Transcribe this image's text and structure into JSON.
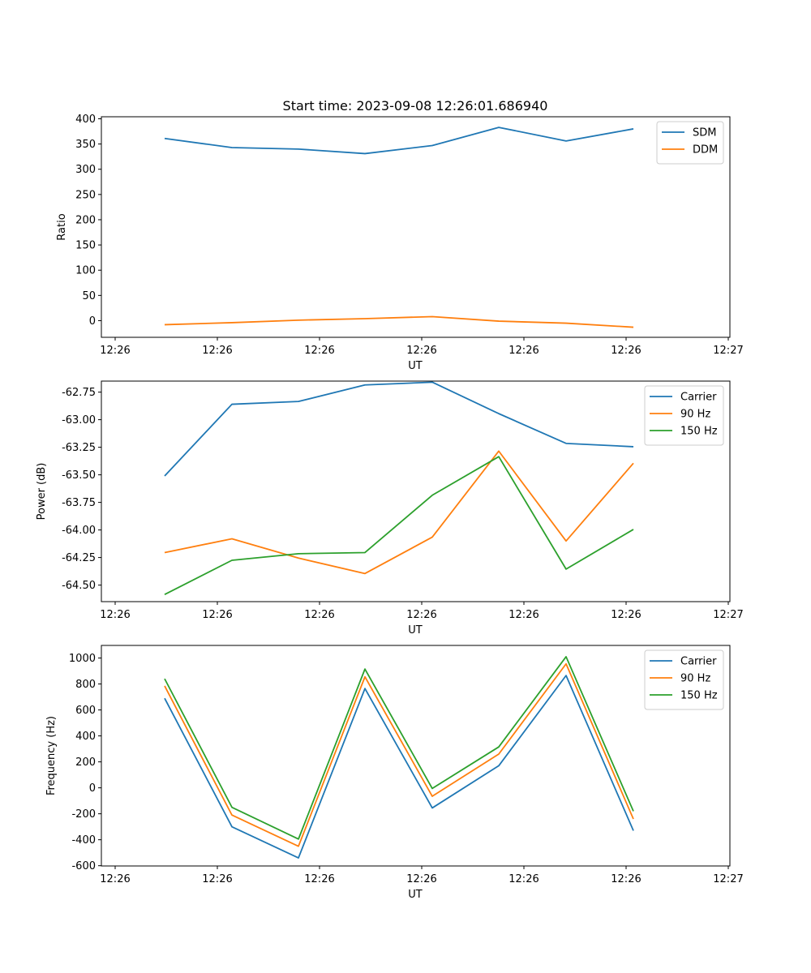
{
  "chart_data": [
    {
      "type": "line",
      "title": "Start time: 2023-09-08 12:26:01.686940",
      "xlabel": "UT",
      "ylabel": "Ratio",
      "legend_position": "top-right",
      "x_tick_labels": [
        "12:26",
        "12:26",
        "12:26",
        "12:26",
        "12:26",
        "12:26",
        "12:27"
      ],
      "ylim": [
        -33,
        404
      ],
      "y_ticks": [
        0,
        50,
        100,
        150,
        200,
        250,
        300,
        350,
        400
      ],
      "series": [
        {
          "name": "SDM",
          "color": "#1f77b4",
          "values": [
            361,
            343,
            340,
            331,
            347,
            383,
            356,
            380
          ]
        },
        {
          "name": "DDM",
          "color": "#ff7f0e",
          "values": [
            -8,
            -4,
            1,
            4,
            8,
            -1,
            -5,
            -13
          ]
        }
      ]
    },
    {
      "type": "line",
      "title": "",
      "xlabel": "UT",
      "ylabel": "Power (dB)",
      "legend_position": "top-right",
      "x_tick_labels": [
        "12:26",
        "12:26",
        "12:26",
        "12:26",
        "12:26",
        "12:26",
        "12:27"
      ],
      "ylim": [
        -64.65,
        -62.65
      ],
      "y_ticks": [
        -62.75,
        -63.0,
        -63.25,
        -63.5,
        -63.75,
        -64.0,
        -64.25,
        -64.5
      ],
      "series": [
        {
          "name": "Carrier",
          "color": "#1f77b4",
          "values": [
            -63.51,
            -62.86,
            -62.835,
            -62.685,
            -62.66,
            -62.945,
            -63.215,
            -63.245
          ]
        },
        {
          "name": "90 Hz",
          "color": "#ff7f0e",
          "values": [
            -64.205,
            -64.08,
            -64.255,
            -64.395,
            -64.065,
            -63.285,
            -64.1,
            -63.395
          ]
        },
        {
          "name": "150 Hz",
          "color": "#2ca02c",
          "values": [
            -64.585,
            -64.275,
            -64.215,
            -64.205,
            -63.685,
            -63.335,
            -64.355,
            -63.995
          ]
        }
      ]
    },
    {
      "type": "line",
      "title": "",
      "xlabel": "UT",
      "ylabel": "Frequency (Hz)",
      "legend_position": "top-right",
      "x_tick_labels": [
        "12:26",
        "12:26",
        "12:26",
        "12:26",
        "12:26",
        "12:26",
        "12:27"
      ],
      "ylim": [
        -602,
        1097
      ],
      "y_ticks": [
        -600,
        -400,
        -200,
        0,
        200,
        400,
        600,
        800,
        1000
      ],
      "series": [
        {
          "name": "Carrier",
          "color": "#1f77b4",
          "values": [
            690,
            -300,
            -540,
            765,
            -155,
            170,
            865,
            -330
          ]
        },
        {
          "name": "90 Hz",
          "color": "#ff7f0e",
          "values": [
            785,
            -210,
            -450,
            855,
            -65,
            260,
            955,
            -240
          ]
        },
        {
          "name": "150 Hz",
          "color": "#2ca02c",
          "values": [
            840,
            -150,
            -395,
            915,
            -5,
            315,
            1010,
            -180
          ]
        }
      ]
    }
  ]
}
